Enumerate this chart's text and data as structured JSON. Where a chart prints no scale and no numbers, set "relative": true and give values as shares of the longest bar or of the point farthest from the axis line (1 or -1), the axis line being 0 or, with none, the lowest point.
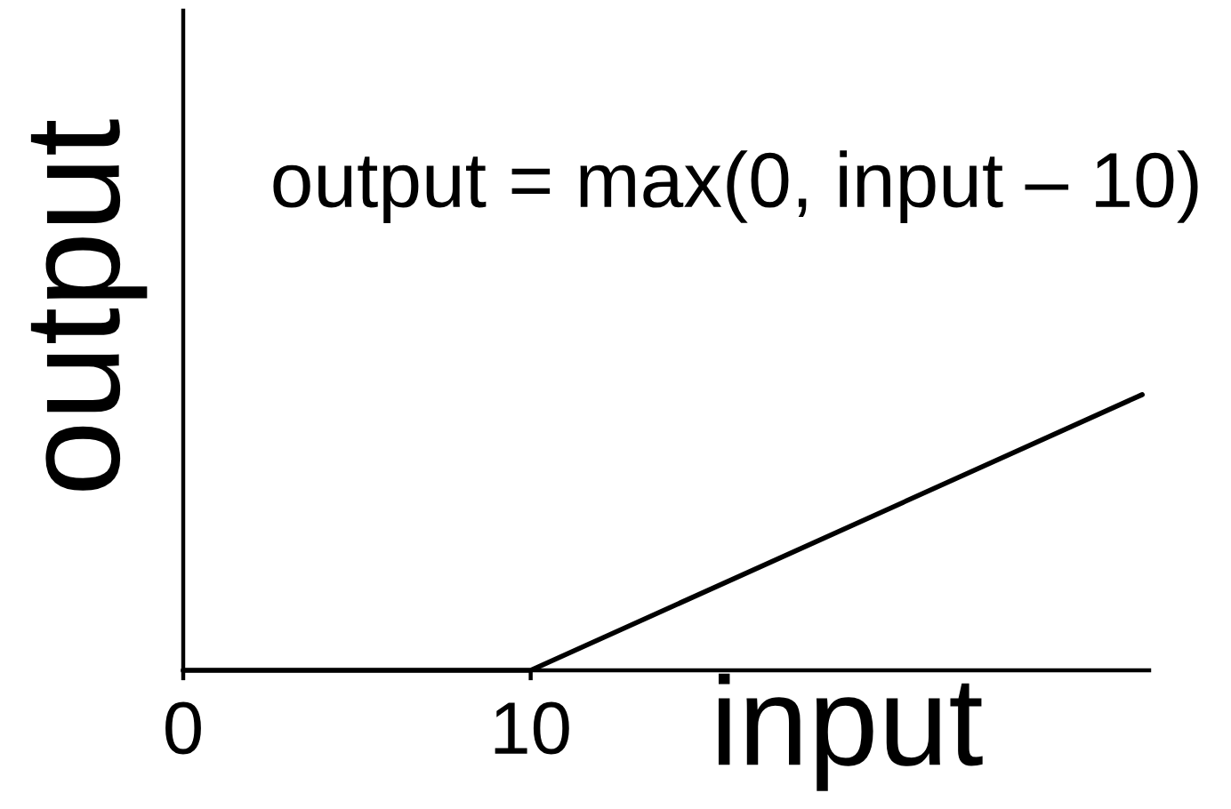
{
  "chart_data": {
    "type": "line",
    "xlabel": "input",
    "ylabel": "output",
    "annotations": [
      "output = max(0, input – 10)"
    ],
    "x": [
      0,
      10,
      27.6
    ],
    "values": [
      0,
      0,
      1
    ],
    "color": "#000000",
    "relative": true,
    "xlim": [
      0,
      27.8
    ],
    "xticks": [
      0,
      10
    ],
    "tick_labels": "x",
    "line_style": "solid"
  }
}
